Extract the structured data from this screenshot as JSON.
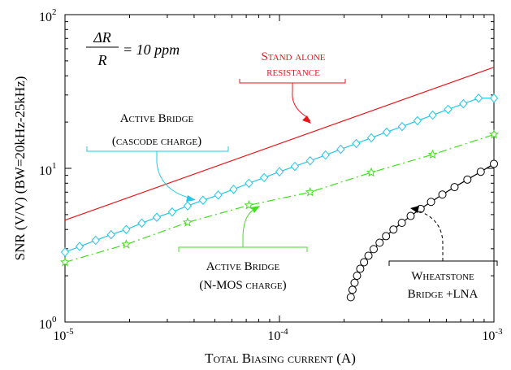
{
  "chart_data": {
    "type": "line",
    "xscale": "log",
    "yscale": "log",
    "xlim": [
      1e-05,
      0.001
    ],
    "ylim": [
      1,
      100
    ],
    "xlabel": "Total Biasing current (A)",
    "ylabel": "SNR (V/V) (BW=20kHz-25kHz)",
    "x_ticks": [
      {
        "base": "10",
        "exp": "-5"
      },
      {
        "base": "10",
        "exp": "-4"
      },
      {
        "base": "10",
        "exp": "-3"
      }
    ],
    "y_ticks": [
      {
        "base": "10",
        "exp": "0"
      },
      {
        "base": "10",
        "exp": "1"
      },
      {
        "base": "10",
        "exp": "2"
      }
    ],
    "formula": {
      "numerator": "ΔR",
      "denominator": "R",
      "rhs": "= 10 ppm"
    },
    "series": [
      {
        "key": "standalone",
        "color": "#e8161b",
        "marker": "none",
        "dash": "solid",
        "x": [
          1e-05,
          0.001
        ],
        "y": [
          4.6,
          45.5
        ]
      },
      {
        "key": "cascode",
        "color": "#22c8e6",
        "marker": "diamond",
        "dash": "solid",
        "x": [
          1e-05,
          1.17e-05,
          1.39e-05,
          1.64e-05,
          1.93e-05,
          2.28e-05,
          2.68e-05,
          3.16e-05,
          3.73e-05,
          4.4e-05,
          5.18e-05,
          6.11e-05,
          7.2e-05,
          8.48e-05,
          0.0001,
          0.000118,
          0.000139,
          0.000164,
          0.000193,
          0.000228,
          0.000268,
          0.000316,
          0.000373,
          0.00044,
          0.000518,
          0.000611,
          0.00072,
          0.000848,
          0.001
        ],
        "y": [
          2.85,
          3.1,
          3.4,
          3.7,
          4.0,
          4.4,
          4.8,
          5.2,
          5.7,
          6.2,
          6.7,
          7.3,
          8.0,
          8.7,
          9.5,
          10.3,
          11.2,
          12.2,
          13.3,
          14.5,
          15.8,
          17.2,
          18.7,
          20.4,
          22.2,
          24.2,
          26.3,
          28.6,
          28.6
        ]
      },
      {
        "key": "nmos",
        "color": "#44dd22",
        "marker": "star",
        "dash": "dashdot",
        "x": [
          1e-05,
          1.93e-05,
          3.73e-05,
          7.2e-05,
          0.000139,
          0.000268,
          0.000518,
          0.001
        ],
        "y": [
          2.45,
          3.2,
          4.45,
          5.75,
          7.0,
          9.4,
          12.3,
          16.6
        ]
      },
      {
        "key": "wheatstone",
        "color": "#000000",
        "marker": "circle",
        "dash": "solid",
        "x": [
          0.000215,
          0.000219,
          0.000224,
          0.00023,
          0.000238,
          0.000248,
          0.00026,
          0.000275,
          0.000293,
          0.000314,
          0.00034,
          0.000372,
          0.000409,
          0.000455,
          0.000509,
          0.000575,
          0.000655,
          0.000752,
          0.000868,
          0.001
        ],
        "y": [
          1.45,
          1.62,
          1.8,
          2.0,
          2.22,
          2.45,
          2.7,
          2.98,
          3.28,
          3.62,
          4.0,
          4.42,
          4.9,
          5.45,
          6.05,
          6.75,
          7.55,
          8.45,
          9.5,
          10.7
        ]
      }
    ],
    "annotations": [
      {
        "key": "standalone",
        "lines": [
          "Stand alone",
          "resistance"
        ],
        "color": "#e8161b"
      },
      {
        "key": "cascode",
        "lines": [
          "Active Bridge",
          "(cascode charge)"
        ],
        "color": "#000000",
        "bracket_color": "#22c8e6"
      },
      {
        "key": "nmos",
        "lines": [
          "Active Bridge",
          "(N-MOS charge)"
        ],
        "color": "#000000",
        "bracket_color": "#44dd22"
      },
      {
        "key": "wheatstone",
        "lines": [
          "Wheatstone",
          "Bridge +LNA"
        ],
        "color": "#000000",
        "bracket_color": "#000000"
      }
    ]
  }
}
